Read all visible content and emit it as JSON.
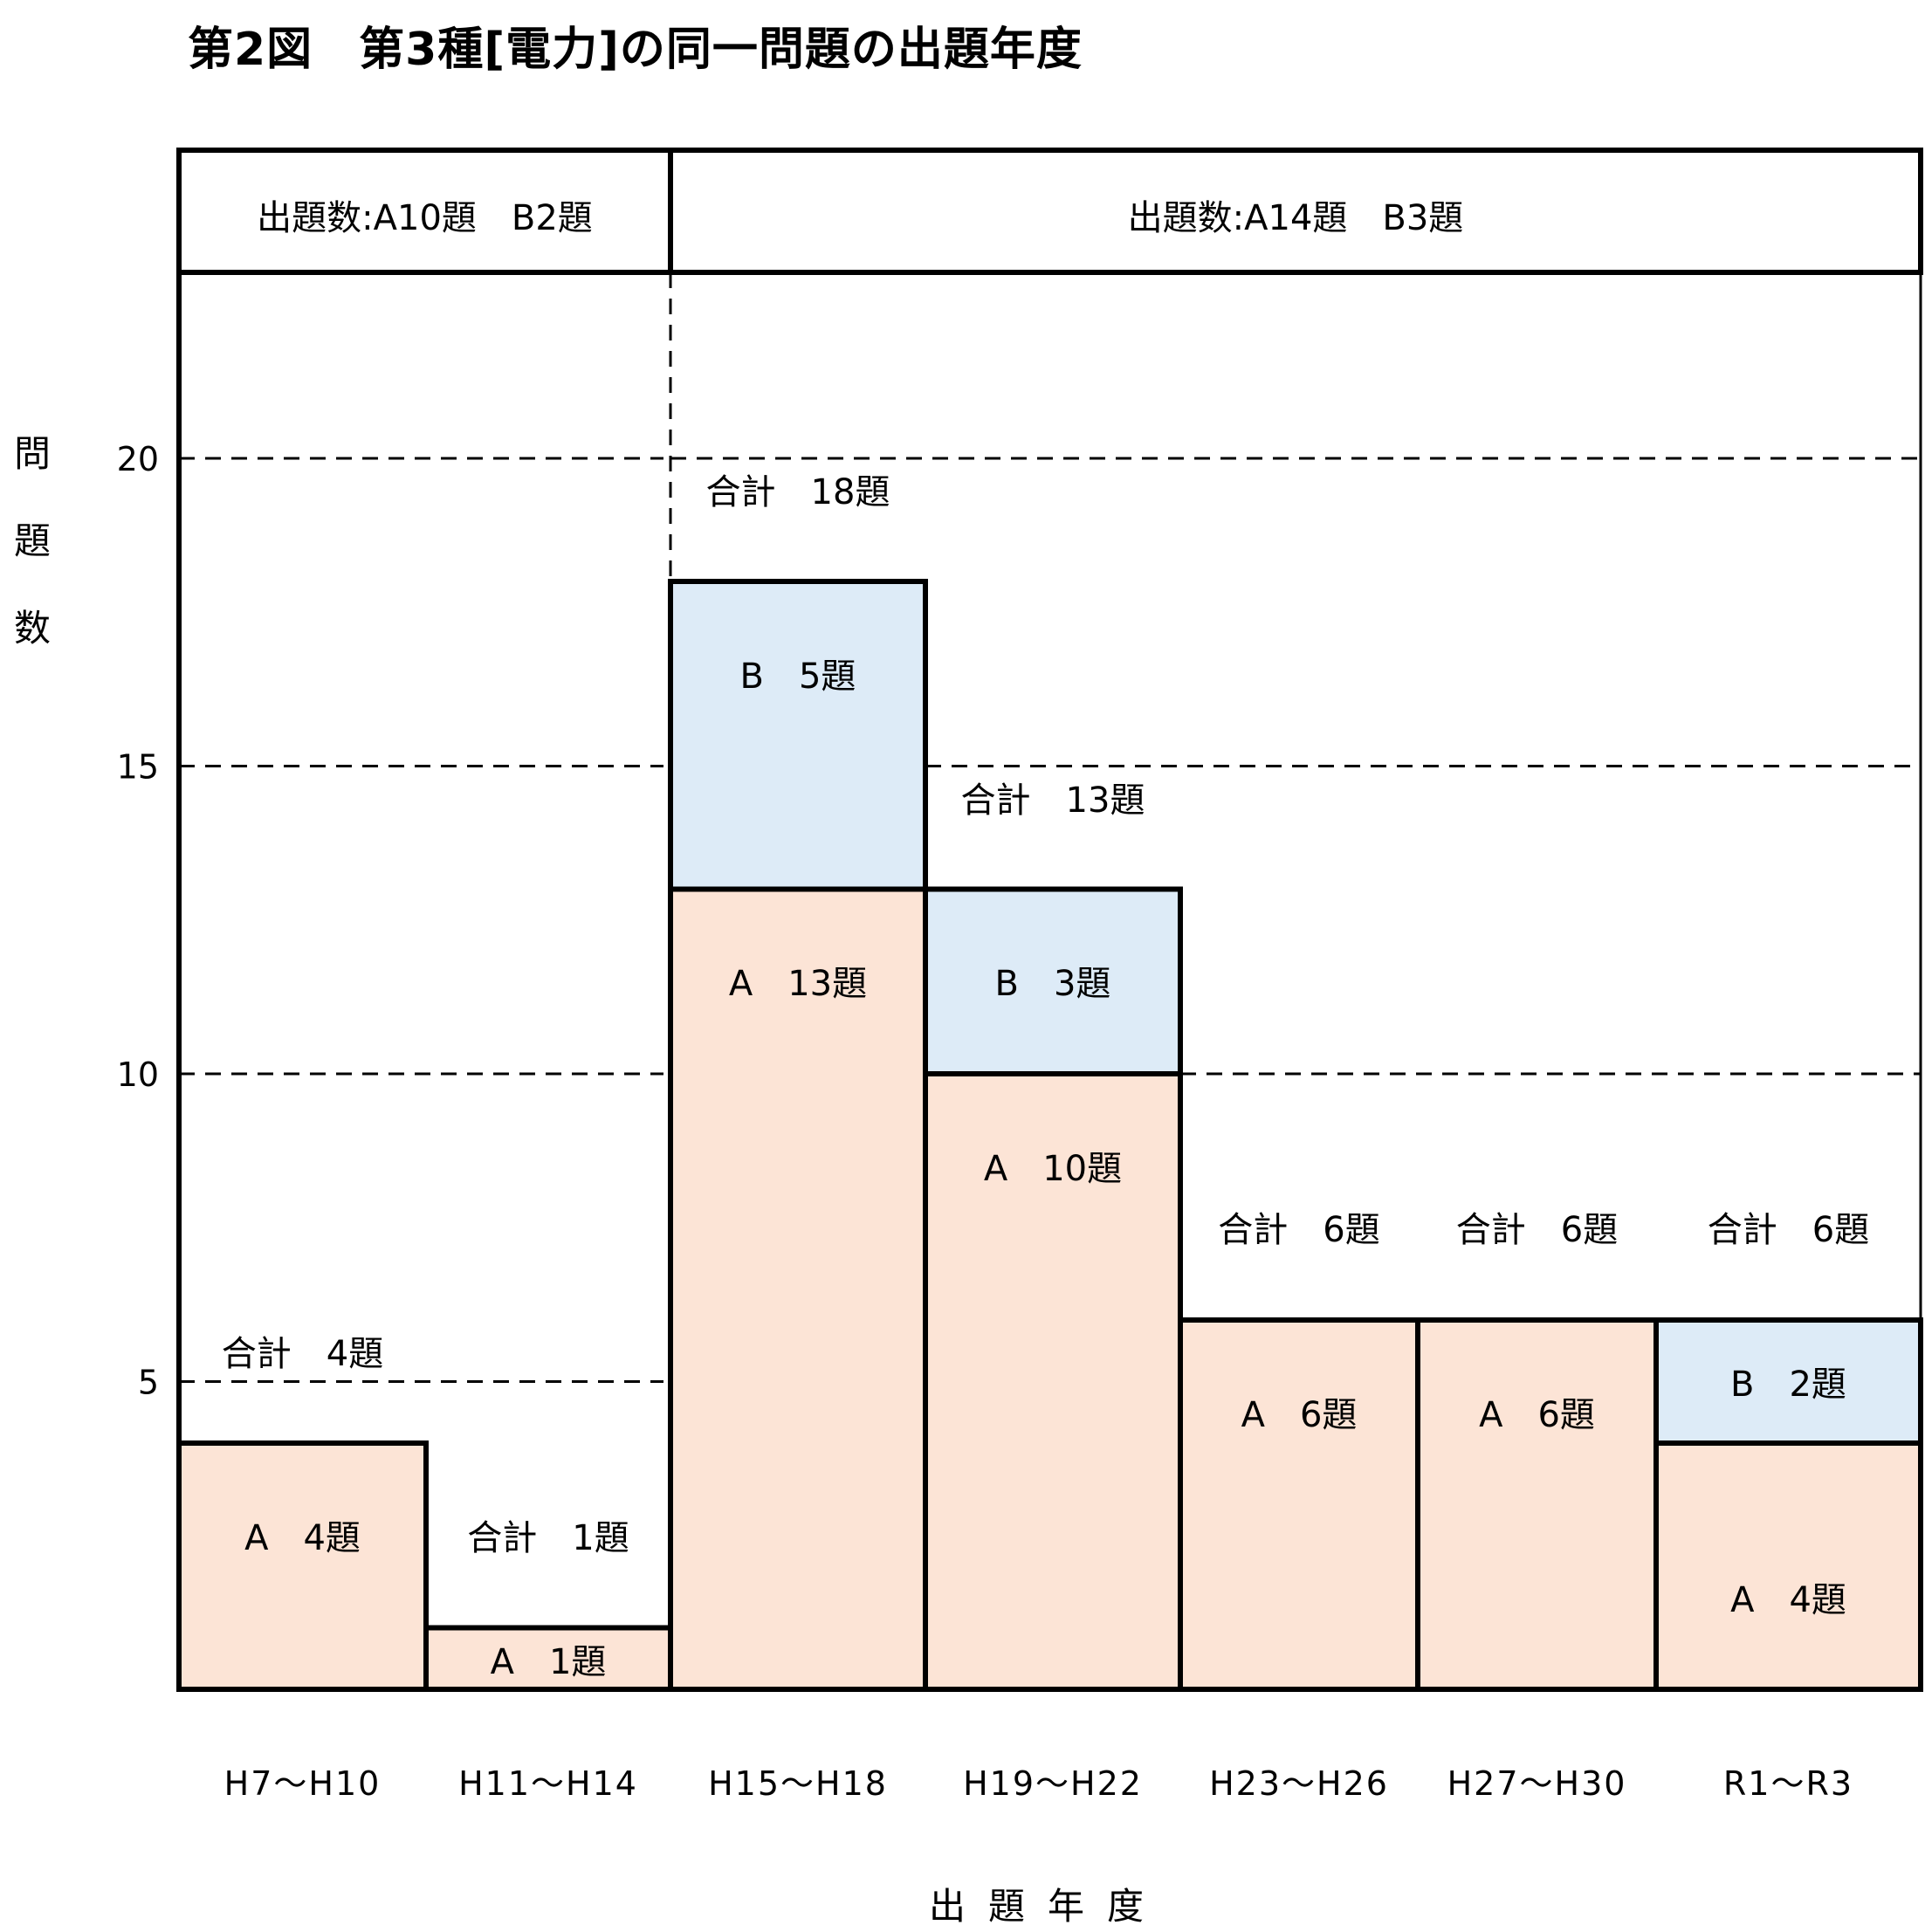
{
  "title": "第2図　第3種[電力]の同一問題の出題年度",
  "header_groups": [
    {
      "label": "出題数:A10題　B2題",
      "span": [
        0,
        1
      ]
    },
    {
      "label": "出題数:A14題　B3題",
      "span": [
        2,
        6
      ]
    }
  ],
  "chart_data": {
    "type": "bar",
    "stacked": true,
    "title": "第2図　第3種[電力]の同一問題の出題年度",
    "xlabel": "出題年度",
    "ylabel": "問題数",
    "ylim": [
      0,
      25
    ],
    "yticks": [
      5,
      10,
      15,
      20
    ],
    "grid": "dashed horizontal",
    "categories": [
      "H7～H10",
      "H11～H14",
      "H15～H18",
      "H19～H22",
      "H23～H26",
      "H27～H30",
      "R1～R3"
    ],
    "series": [
      {
        "name": "A",
        "values": [
          4,
          1,
          13,
          10,
          6,
          6,
          4
        ],
        "color": "#fce4d6",
        "labels": [
          "A　4題",
          "A　1題",
          "A　13題",
          "A　10題",
          "A　6題",
          "A　6題",
          "A　4題"
        ]
      },
      {
        "name": "B",
        "values": [
          0,
          0,
          5,
          3,
          0,
          0,
          2
        ],
        "color": "#ddebf7",
        "labels": [
          "",
          "",
          "B　5題",
          "B　3題",
          "",
          "",
          "B　2題"
        ]
      }
    ],
    "totals": [
      "合計　4題",
      "合計　1題",
      "合計　18題",
      "合計　13題",
      "合計　6題",
      "合計　6題",
      "合計　6題"
    ]
  }
}
